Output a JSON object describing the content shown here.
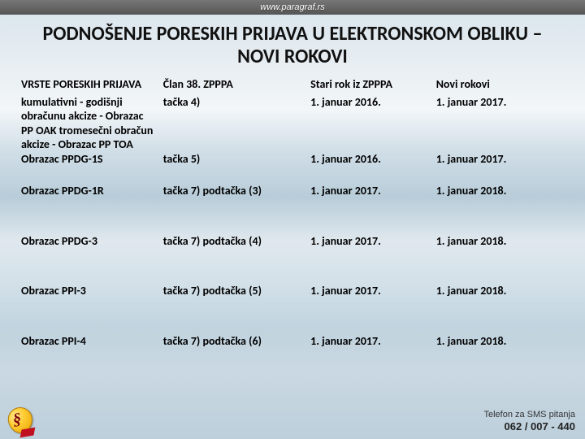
{
  "url_bar": "www.paragraf.rs",
  "title": "PODNOŠENJE PORESKIH PRIJAVA U ELEKTRONSKOM OBLIKU – NOVI ROKOVI",
  "table": {
    "columns": [
      "VRSTE PORESKIH PRIJAVA",
      "Član 38. ZPPPA",
      "Stari rok iz ZPPPA",
      "Novi rokovi"
    ],
    "rows": [
      {
        "c1": "kumulativni - godišnji obračunu akcize - Obrazac PP OAK tromesečni obračun akcize - Obrazac PP TOA",
        "c2": "tačka 4)",
        "c3": "1. januar 2016.",
        "c4": "1. januar 2017."
      },
      {
        "c1": "Obrazac PPDG-1S",
        "c2": "tačka 5)",
        "c3": "1. januar 2016.",
        "c4": "1. januar 2017."
      },
      {
        "c1": "Obrazac PPDG-1R",
        "c2": "tačka 7) podtačka (3)",
        "c3": "1. januar 2017.",
        "c4": "1. januar 2018."
      },
      {
        "c1": "Obrazac PPDG-3",
        "c2": "tačka 7) podtačka (4)",
        "c3": "1. januar 2017.",
        "c4": "1. januar 2018."
      },
      {
        "c1": "Obrazac PPI-3",
        "c2": "tačka 7) podtačka (5)",
        "c3": "1. januar 2017.",
        "c4": "1. januar 2018."
      },
      {
        "c1": "Obrazac PPI-4",
        "c2": "tačka 7) podtačka (6)",
        "c3": "1. januar 2017.",
        "c4": "1. januar 2018."
      }
    ]
  },
  "footer": {
    "contact_line1": "Telefon za SMS pitanja",
    "contact_line2": "062 / 007 - 440"
  }
}
